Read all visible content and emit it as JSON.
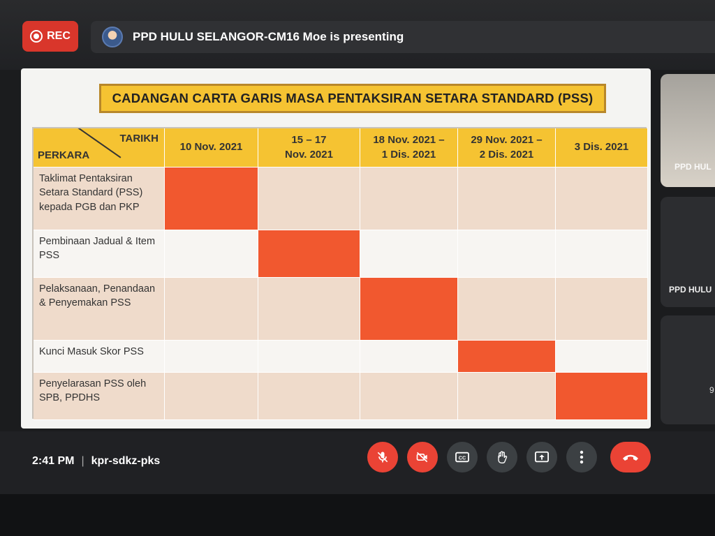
{
  "recording": {
    "label": "REC"
  },
  "presenter": {
    "text": "PPD HULU SELANGOR-CM16 Moe is presenting"
  },
  "slide": {
    "title": "CADANGAN CARTA GARIS MASA PENTAKSIRAN SETARA STANDARD (PSS)",
    "corner_top": "TARIKH",
    "corner_bottom": "PERKARA",
    "dates": [
      "10 Nov. 2021",
      "15 – 17\nNov. 2021",
      "18 Nov. 2021 –\n1 Dis. 2021",
      "29 Nov. 2021 –\n2 Dis. 2021",
      "3 Dis. 2021"
    ],
    "tasks": [
      {
        "label": "Taklimat Pentaksiran Setara Standard (PSS) kepada PGB dan PKP",
        "active_column": 0
      },
      {
        "label": "Pembinaan Jadual & Item PSS",
        "active_column": 1
      },
      {
        "label": "Pelaksanaan, Penandaan & Penyemakan PSS",
        "active_column": 2
      },
      {
        "label": "Kunci Masuk Skor PSS",
        "active_column": 3
      },
      {
        "label": "Penyelarasan PSS oleh SPB, PPDHS",
        "active_column": 4
      }
    ],
    "colors": {
      "header": "#f5c332",
      "bar": "#f1582f",
      "row_odd": "#efdbcb",
      "row_even": "#f7f5f2"
    }
  },
  "participants": [
    {
      "label": "PPD HUL"
    },
    {
      "label": "PPD HULU"
    },
    {
      "label": "9"
    }
  ],
  "meeting": {
    "time": "2:41 PM",
    "code": "kpr-sdkz-pks"
  },
  "controls": [
    {
      "name": "mic-off-icon",
      "state": "off"
    },
    {
      "name": "camera-off-icon",
      "state": "off"
    },
    {
      "name": "captions-icon"
    },
    {
      "name": "raise-hand-icon"
    },
    {
      "name": "present-icon"
    },
    {
      "name": "more-options-icon"
    },
    {
      "name": "end-call-icon"
    }
  ]
}
